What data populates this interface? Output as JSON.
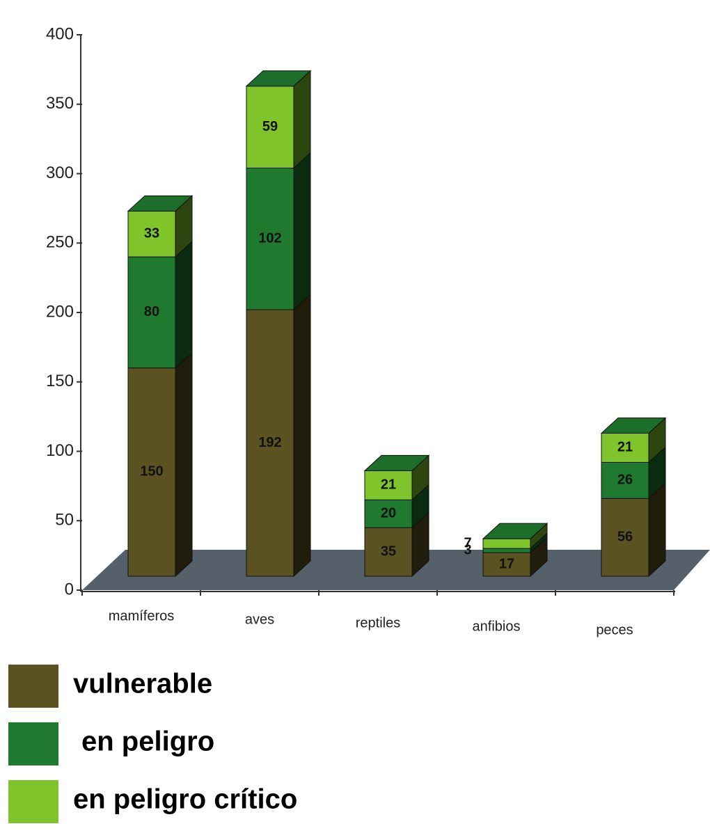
{
  "chart_data": {
    "type": "bar3d_stacked",
    "categories": [
      "mamíferos",
      "aves",
      "reptiles",
      "anfibios",
      "peces"
    ],
    "series": [
      {
        "name": "vulnerable",
        "color": "#5b5222",
        "values": [
          150,
          192,
          35,
          17,
          56
        ]
      },
      {
        "name": "en peligro",
        "color": "#1f7a2f",
        "values": [
          80,
          102,
          20,
          3,
          26
        ]
      },
      {
        "name": "en peligro crítico",
        "color": "#80c42c",
        "values": [
          33,
          59,
          21,
          7,
          21
        ]
      }
    ],
    "ylim": [
      0,
      400
    ],
    "yticks": [
      0,
      50,
      100,
      150,
      200,
      250,
      300,
      350,
      400
    ]
  }
}
